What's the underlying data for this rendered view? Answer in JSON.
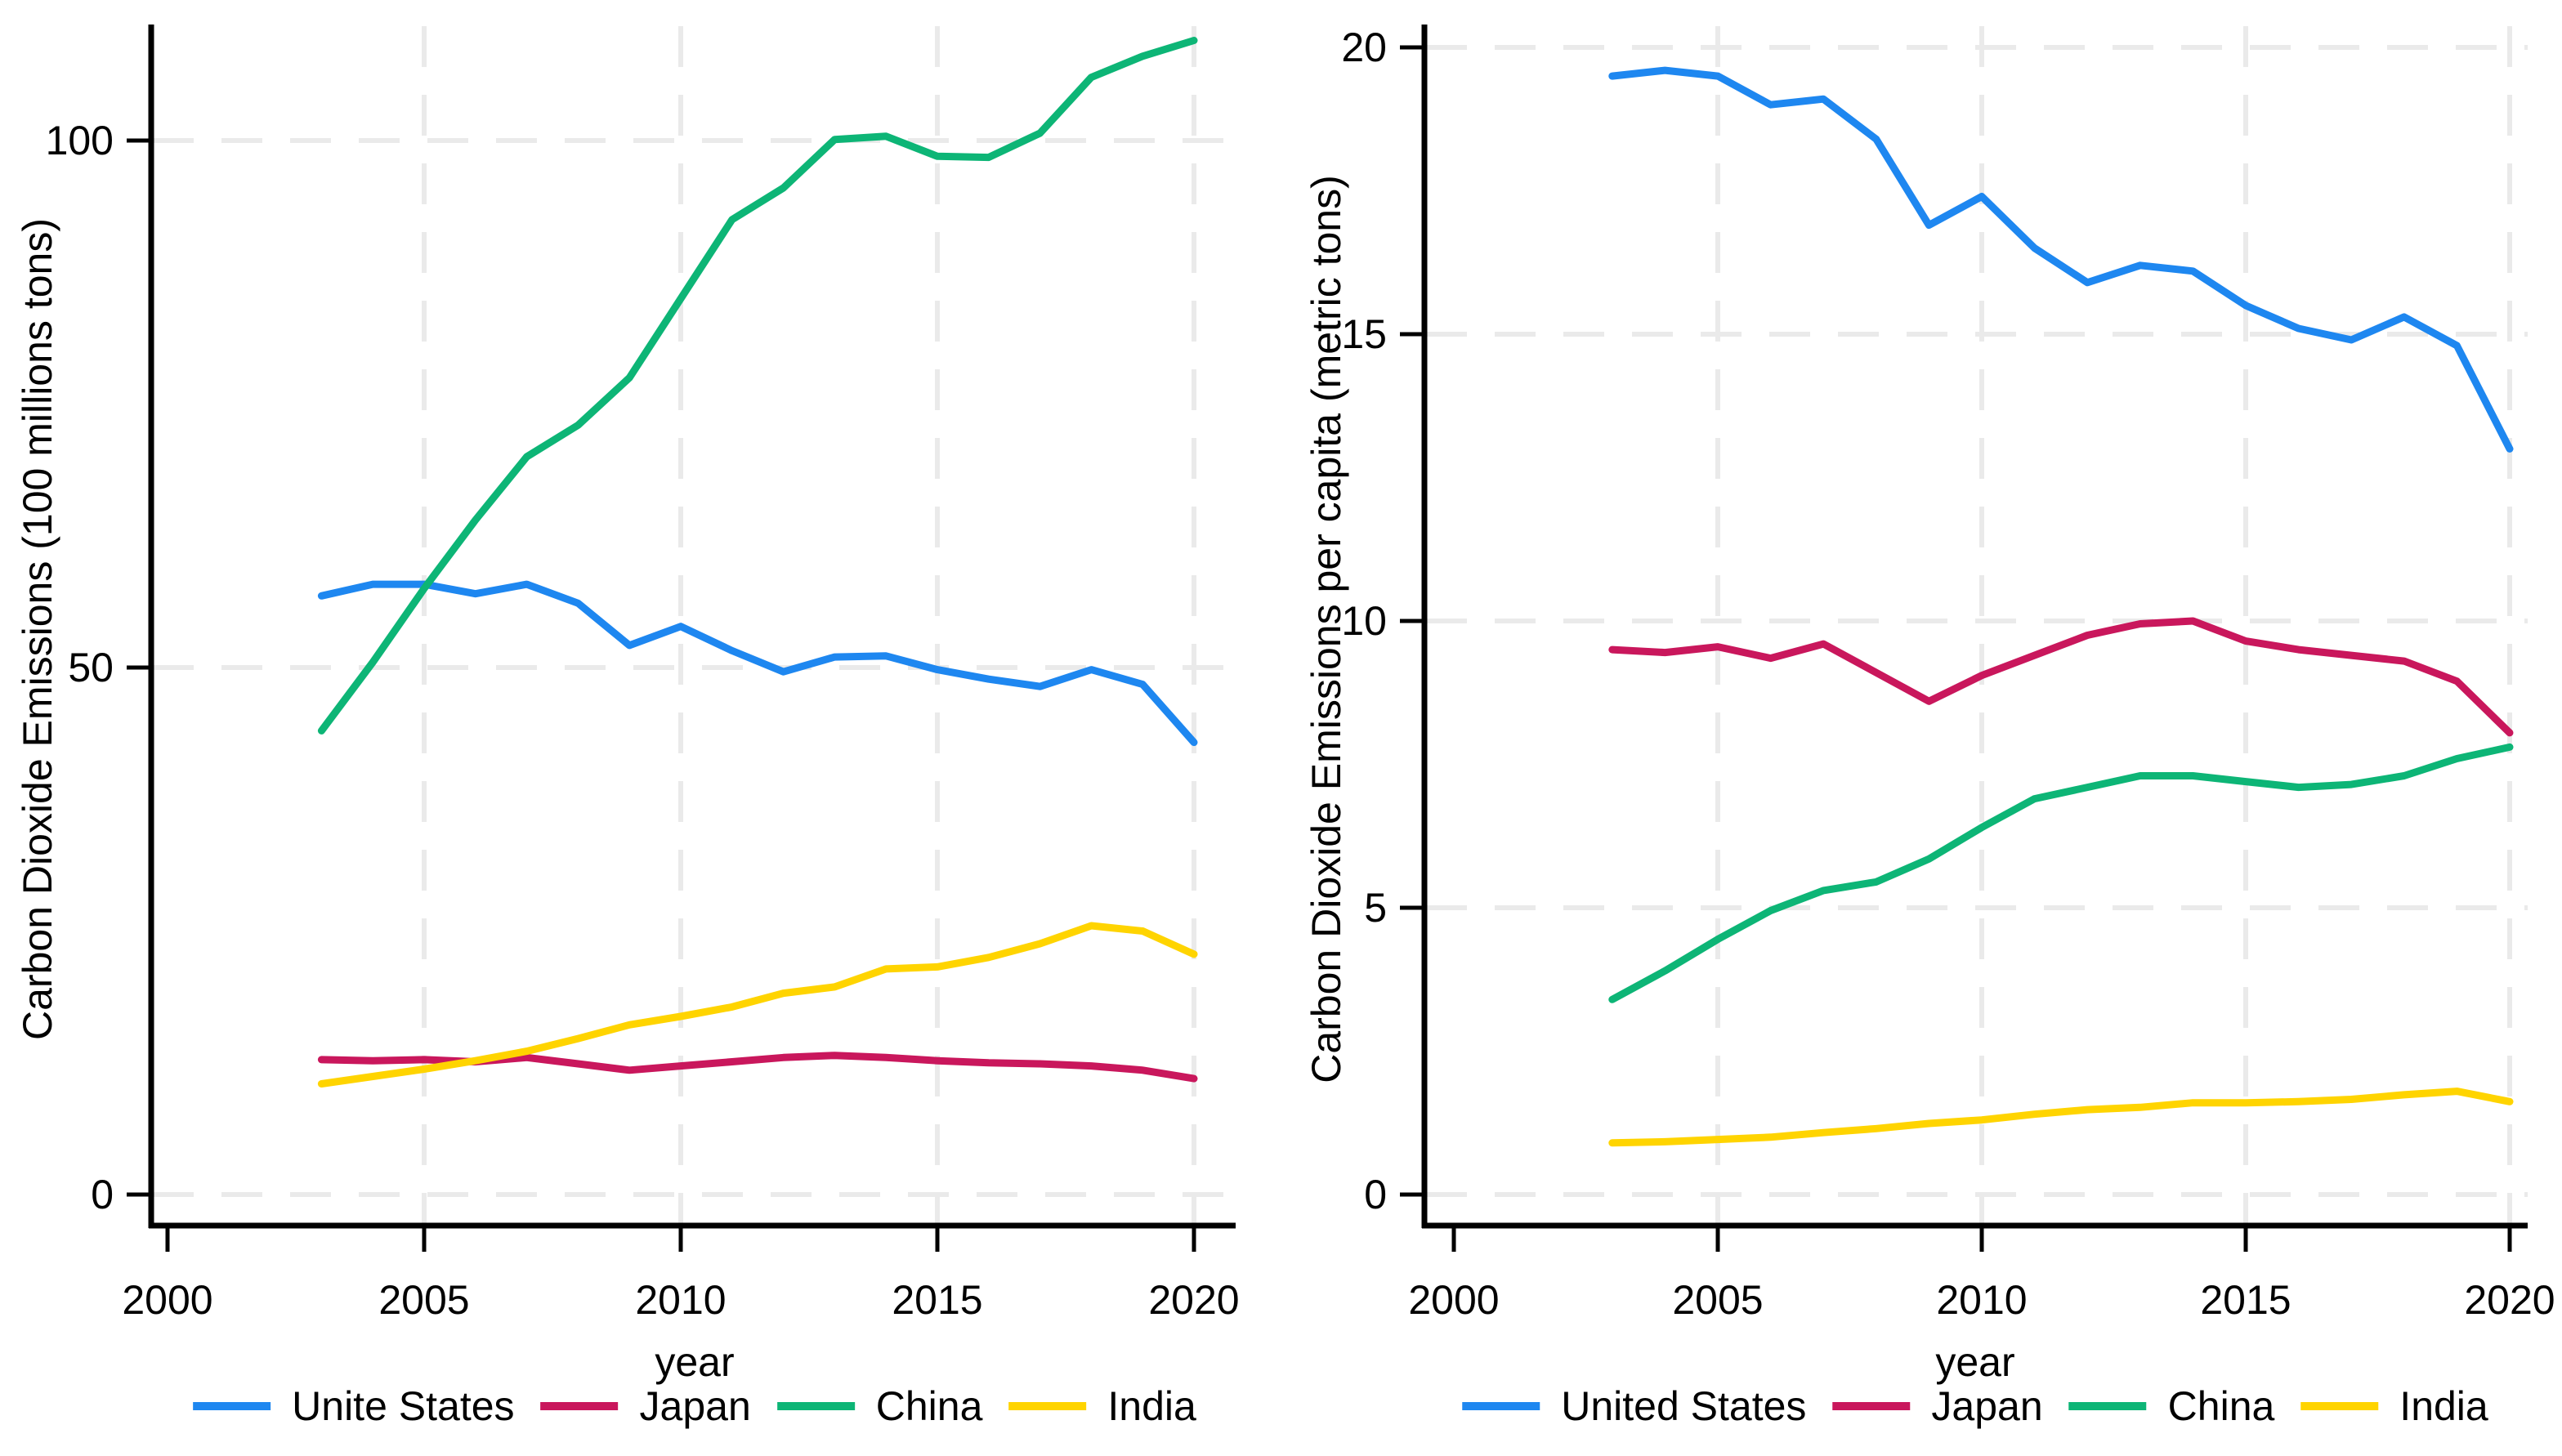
{
  "chart_data": [
    {
      "type": "line",
      "title": "",
      "ylabel": "Carbon Dioxide Emissions (100 millions tons)",
      "xlabel": "year",
      "x": [
        2003,
        2004,
        2005,
        2006,
        2007,
        2008,
        2009,
        2010,
        2011,
        2012,
        2013,
        2014,
        2015,
        2016,
        2017,
        2018,
        2019,
        2020
      ],
      "x_ticks": [
        2000,
        2005,
        2010,
        2015,
        2020
      ],
      "y_ticks": [
        0,
        50,
        100
      ],
      "ylim": [
        0,
        111
      ],
      "xlim": [
        2000,
        2021
      ],
      "grid": true,
      "legend_position": "bottom",
      "series": [
        {
          "name": "Unite States",
          "color": "#1E87F0",
          "values": [
            56.8,
            57.9,
            57.9,
            57.0,
            57.9,
            56.1,
            52.1,
            53.9,
            51.6,
            49.6,
            51.0,
            51.1,
            49.8,
            48.9,
            48.2,
            49.8,
            48.4,
            42.9
          ]
        },
        {
          "name": "Japan",
          "color": "#C9175C",
          "values": [
            12.8,
            12.7,
            12.8,
            12.6,
            13.0,
            12.4,
            11.8,
            12.2,
            12.6,
            13.0,
            13.2,
            13.0,
            12.7,
            12.5,
            12.4,
            12.2,
            11.8,
            11.0
          ]
        },
        {
          "name": "China",
          "color": "#0DB576",
          "values": [
            44.0,
            50.5,
            57.5,
            64.0,
            70.0,
            73.0,
            77.5,
            85.0,
            92.5,
            95.5,
            100.1,
            100.4,
            98.5,
            98.4,
            100.7,
            106.0,
            108.0,
            109.5
          ]
        },
        {
          "name": "India",
          "color": "#FFD400",
          "values": [
            10.5,
            11.2,
            11.9,
            12.7,
            13.6,
            14.8,
            16.1,
            16.9,
            17.8,
            19.1,
            19.7,
            21.4,
            21.6,
            22.5,
            23.8,
            25.5,
            25.0,
            22.8
          ]
        }
      ]
    },
    {
      "type": "line",
      "title": "",
      "ylabel": "Carbon Dioxide Emissions per capita (metric tons)",
      "xlabel": "year",
      "x": [
        2003,
        2004,
        2005,
        2006,
        2007,
        2008,
        2009,
        2010,
        2011,
        2012,
        2013,
        2014,
        2015,
        2016,
        2017,
        2018,
        2019,
        2020
      ],
      "x_ticks": [
        2000,
        2005,
        2010,
        2015,
        2020
      ],
      "y_ticks": [
        0,
        5,
        10,
        15,
        20
      ],
      "ylim": [
        0,
        20.4
      ],
      "xlim": [
        2000,
        2021
      ],
      "grid": true,
      "legend_position": "bottom",
      "series": [
        {
          "name": "United States",
          "color": "#1E87F0",
          "values": [
            19.5,
            19.6,
            19.5,
            19.0,
            19.1,
            18.4,
            16.9,
            17.4,
            16.5,
            15.9,
            16.2,
            16.1,
            15.5,
            15.1,
            14.9,
            15.3,
            14.8,
            13.0
          ]
        },
        {
          "name": "Japan",
          "color": "#C9175C",
          "values": [
            9.5,
            9.45,
            9.55,
            9.35,
            9.6,
            9.1,
            8.6,
            9.05,
            9.4,
            9.75,
            9.95,
            10.0,
            9.65,
            9.5,
            9.4,
            9.3,
            8.95,
            8.05
          ]
        },
        {
          "name": "China",
          "color": "#0DB576",
          "values": [
            3.4,
            3.9,
            4.45,
            4.95,
            5.3,
            5.45,
            5.85,
            6.4,
            6.9,
            7.1,
            7.3,
            7.3,
            7.2,
            7.1,
            7.15,
            7.3,
            7.6,
            7.8
          ]
        },
        {
          "name": "India",
          "color": "#FFD400",
          "values": [
            0.9,
            0.92,
            0.96,
            1.0,
            1.08,
            1.15,
            1.24,
            1.3,
            1.4,
            1.48,
            1.52,
            1.6,
            1.6,
            1.62,
            1.66,
            1.74,
            1.8,
            1.62
          ]
        }
      ]
    }
  ],
  "colors": {
    "grid": "#EAEAEA",
    "axis": "#000000",
    "background": "#FFFFFF"
  }
}
